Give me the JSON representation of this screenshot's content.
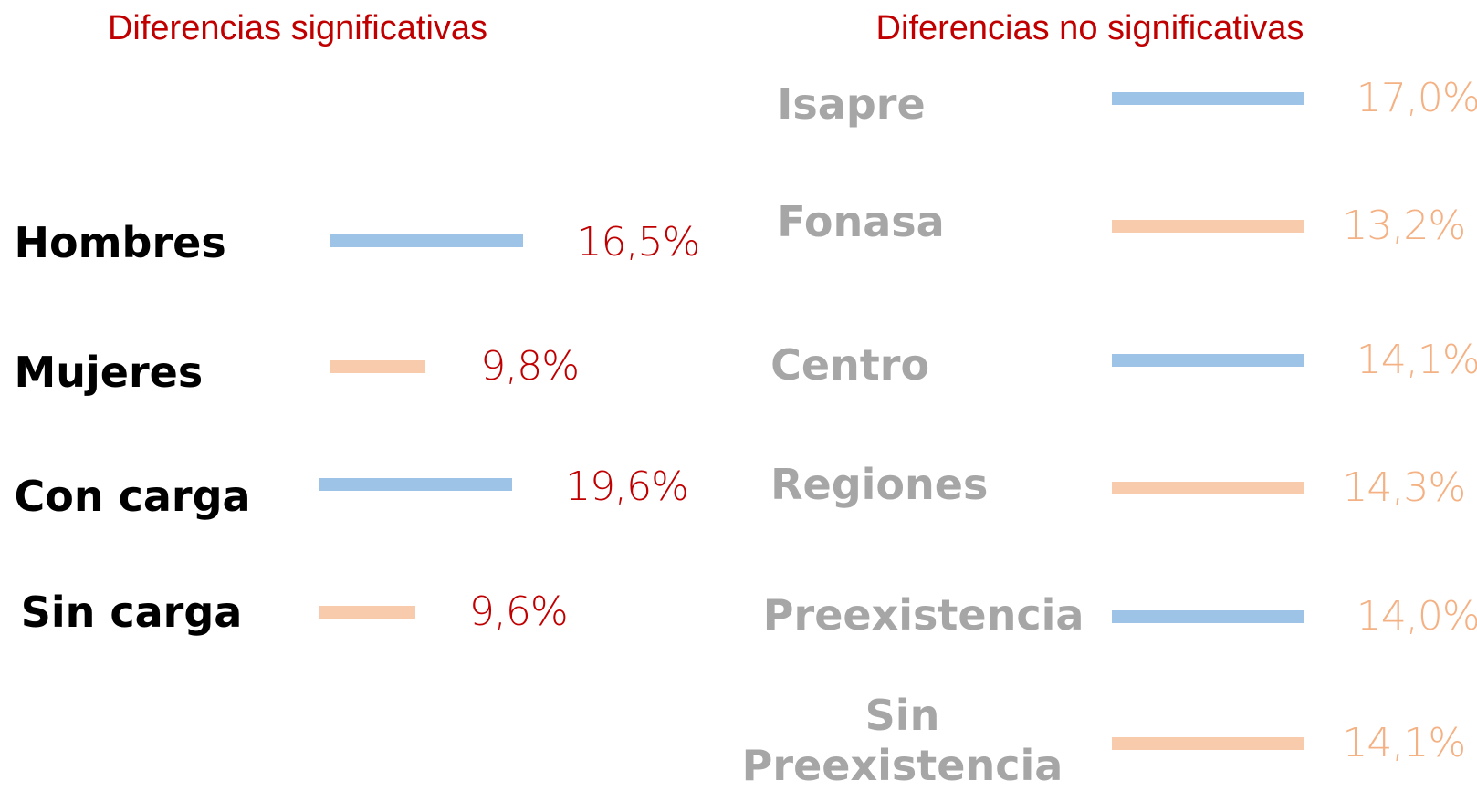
{
  "left": {
    "title": "Diferencias significativas",
    "items": [
      {
        "label": "Hombres",
        "value": "16,5%"
      },
      {
        "label": "Mujeres",
        "value": "9,8%"
      },
      {
        "label": "Con carga",
        "value": "19,6%"
      },
      {
        "label": "Sin carga",
        "value": "9,6%"
      }
    ]
  },
  "right": {
    "title": "Diferencias no significativas",
    "items": [
      {
        "label": "Isapre",
        "value": "17,0%"
      },
      {
        "label": "Fonasa",
        "value": "13,2%"
      },
      {
        "label": "Centro",
        "value": "14,1%"
      },
      {
        "label": "Regiones",
        "value": "14,3%"
      },
      {
        "label": "Preexistencia",
        "value": "14,0%"
      },
      {
        "label": "Sin Preexistencia",
        "value": "14,1%"
      }
    ]
  }
}
